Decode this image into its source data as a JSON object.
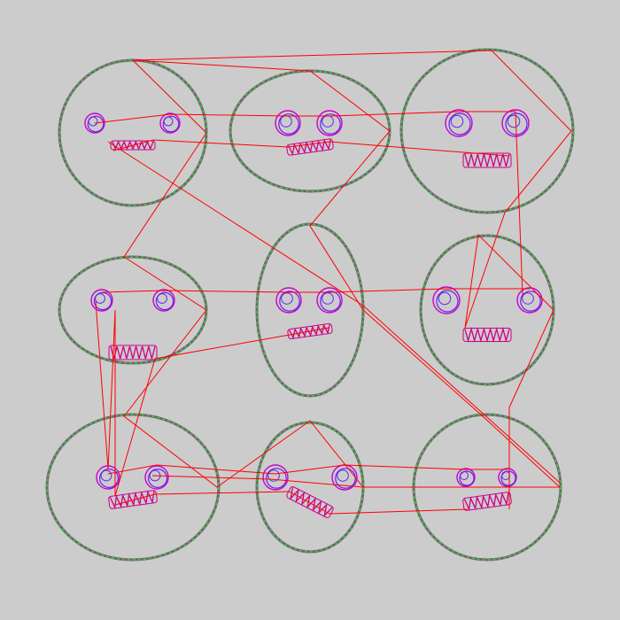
{
  "colors": {
    "background": "#cccccc",
    "face_outline": "#6a6a6a",
    "face_dash": "#22dd22",
    "face_dash_alt": "#cc22cc",
    "eye_outer": "#cc00cc",
    "eye_inner": "#6622ee",
    "mouth": "#cc0088",
    "connector": "#ff0000"
  },
  "grid": {
    "rows": 3,
    "cols": 3,
    "face_count": 9
  }
}
